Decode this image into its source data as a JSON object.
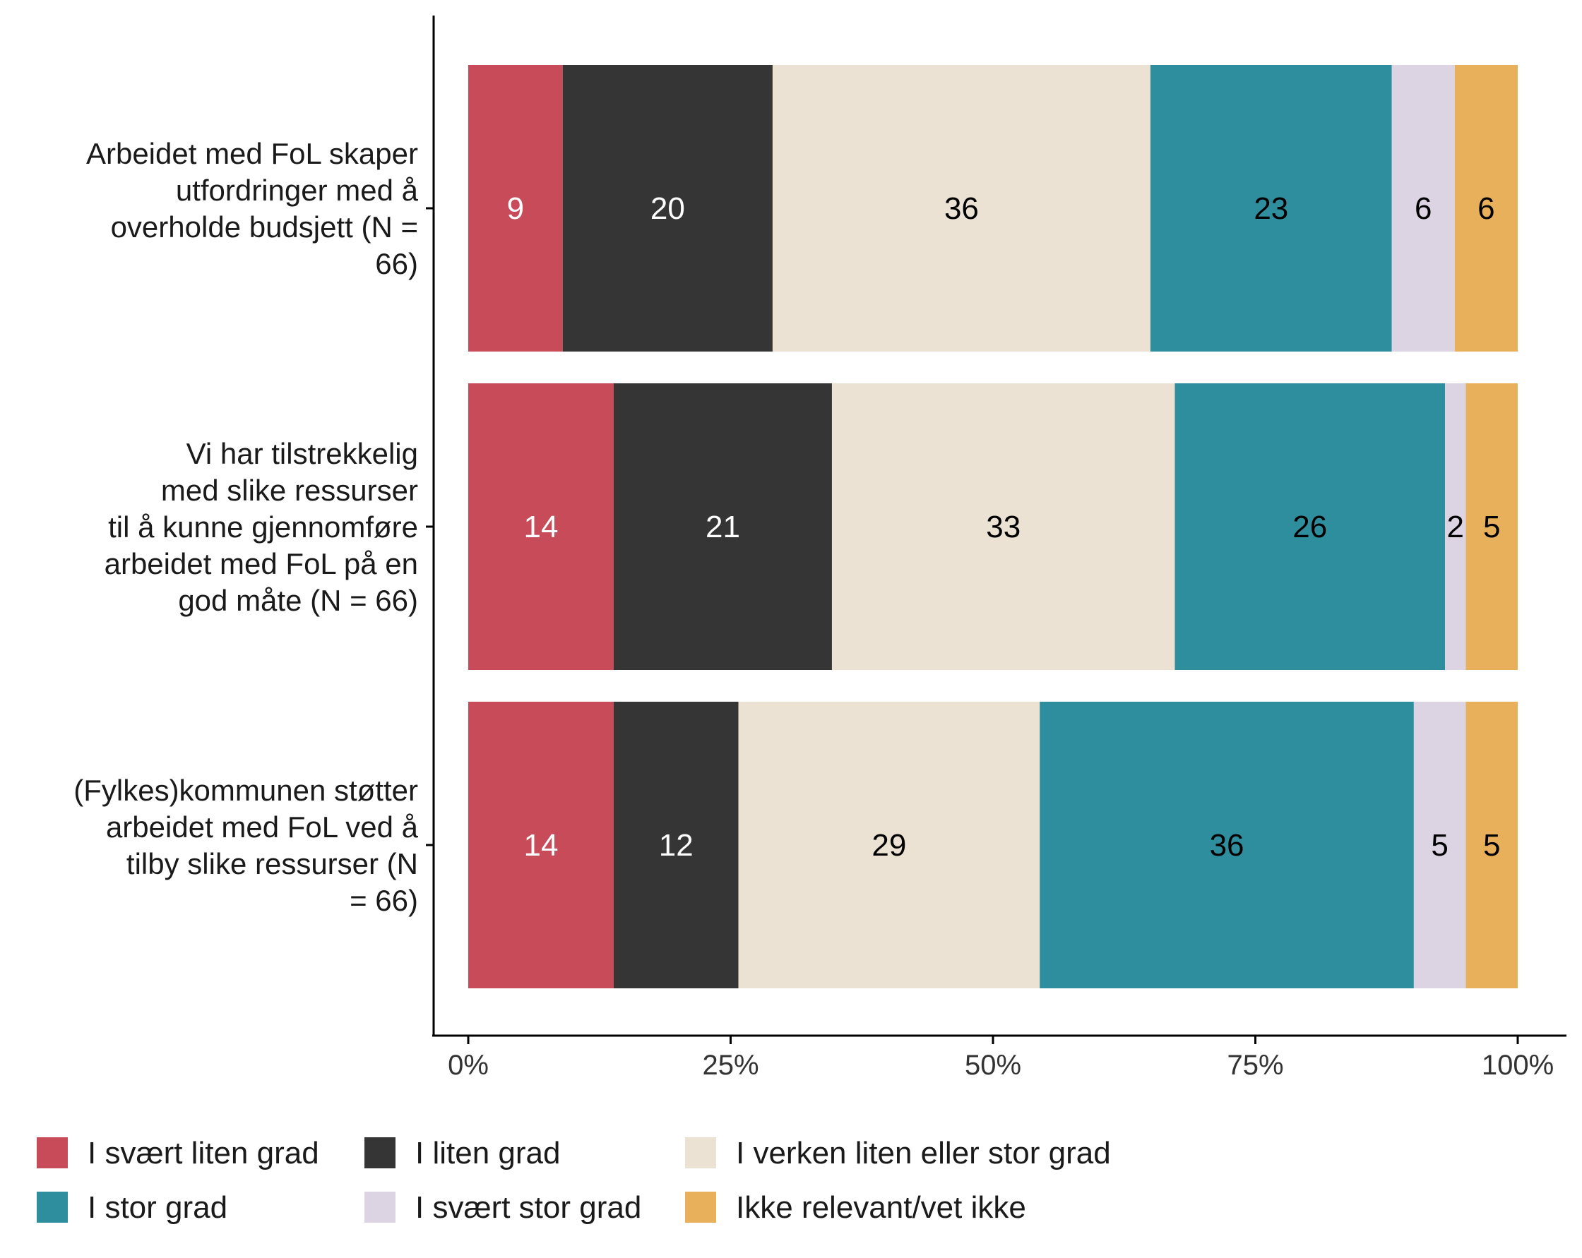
{
  "chart_data": {
    "type": "bar",
    "orientation": "horizontal",
    "stacked": true,
    "normalized_percent": true,
    "categories": [
      [
        "Arbeidet med FoL skaper",
        "utfordringer med å",
        "overholde budsjett (N =",
        "66)"
      ],
      [
        "Vi har tilstrekkelig",
        "med slike ressurser",
        "til å kunne gjennomføre",
        "arbeidet med FoL på en",
        "god måte (N = 66)"
      ],
      [
        "(Fylkes)kommunen støtter",
        "arbeidet med FoL ved å",
        "tilby slike ressurser (N",
        "= 66)"
      ]
    ],
    "series": [
      {
        "name": "I svært liten grad",
        "color": "#c84b5a",
        "label_color": "#ffffff",
        "values": [
          9,
          14,
          14
        ]
      },
      {
        "name": "I liten grad",
        "color": "#353535",
        "label_color": "#ffffff",
        "values": [
          20,
          21,
          12
        ]
      },
      {
        "name": "I verken liten eller stor grad",
        "color": "#ece2d3",
        "label_color": "#000000",
        "values": [
          36,
          33,
          29
        ]
      },
      {
        "name": "I stor grad",
        "color": "#2e8e9e",
        "label_color": "#000000",
        "values": [
          23,
          26,
          36
        ]
      },
      {
        "name": "I svært stor grad",
        "color": "#dcd4e2",
        "label_color": "#000000",
        "values": [
          6,
          2,
          5
        ]
      },
      {
        "name": "Ikke relevant/vet ikke",
        "color": "#e8b05b",
        "label_color": "#000000",
        "values": [
          6,
          5,
          5
        ]
      }
    ],
    "x_ticks": [
      "0%",
      "25%",
      "50%",
      "75%",
      "100%"
    ],
    "x_tick_values": [
      0,
      25,
      50,
      75,
      100
    ],
    "xlim": [
      0,
      100
    ],
    "title": "",
    "xlabel": "",
    "ylabel": "",
    "legend_position": "bottom",
    "grid": false
  }
}
